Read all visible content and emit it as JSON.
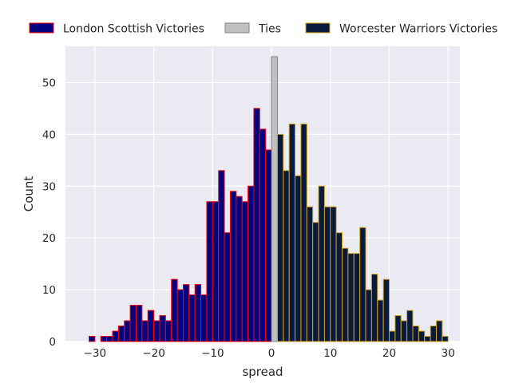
{
  "chart_data": {
    "type": "bar",
    "title": "",
    "xlabel": "spread",
    "ylabel": "Count",
    "xlim": [
      -35,
      32
    ],
    "ylim": [
      0,
      57
    ],
    "grid": true,
    "legend_placement": "top, above plot",
    "x_ticks": [
      -30,
      -20,
      -10,
      0,
      10,
      20,
      30
    ],
    "y_ticks": [
      0,
      10,
      20,
      30,
      40,
      50
    ],
    "x_tick_labels": [
      "−30",
      "−20",
      "−10",
      "0",
      "10",
      "20",
      "30"
    ],
    "y_tick_labels": [
      "0",
      "10",
      "20",
      "30",
      "40",
      "50"
    ],
    "series": [
      {
        "name": "London Scottish Victories",
        "fill": "#000080",
        "edge": "#ff0000",
        "x": [
          -31,
          -30,
          -29,
          -28,
          -27,
          -26,
          -25,
          -24,
          -23,
          -22,
          -21,
          -20,
          -19,
          -18,
          -17,
          -16,
          -15,
          -14,
          -13,
          -12,
          -11,
          -10,
          -9,
          -8,
          -7,
          -6,
          -5,
          -4,
          -3,
          -2,
          -1
        ],
        "values": [
          1,
          0,
          1,
          1,
          2,
          3,
          4,
          7,
          7,
          4,
          6,
          4,
          5,
          4,
          12,
          10,
          11,
          9,
          11,
          9,
          27,
          27,
          33,
          21,
          29,
          28,
          27,
          30,
          45,
          41,
          37
        ]
      },
      {
        "name": "Ties",
        "fill": "#c0c0c0",
        "edge": "#808080",
        "x": [
          0
        ],
        "values": [
          55
        ]
      },
      {
        "name": "Worcester Warriors Victories",
        "fill": "#0a1a3d",
        "edge": "#d4a017",
        "x": [
          1,
          2,
          3,
          4,
          5,
          6,
          7,
          8,
          9,
          10,
          11,
          12,
          13,
          14,
          15,
          16,
          17,
          18,
          19,
          20,
          21,
          22,
          23,
          24,
          25,
          26,
          27,
          28,
          29
        ],
        "values": [
          40,
          33,
          42,
          32,
          42,
          26,
          23,
          30,
          26,
          26,
          21,
          18,
          17,
          17,
          22,
          10,
          13,
          8,
          12,
          2,
          5,
          4,
          6,
          3,
          2,
          1,
          3,
          4,
          1
        ]
      }
    ]
  }
}
